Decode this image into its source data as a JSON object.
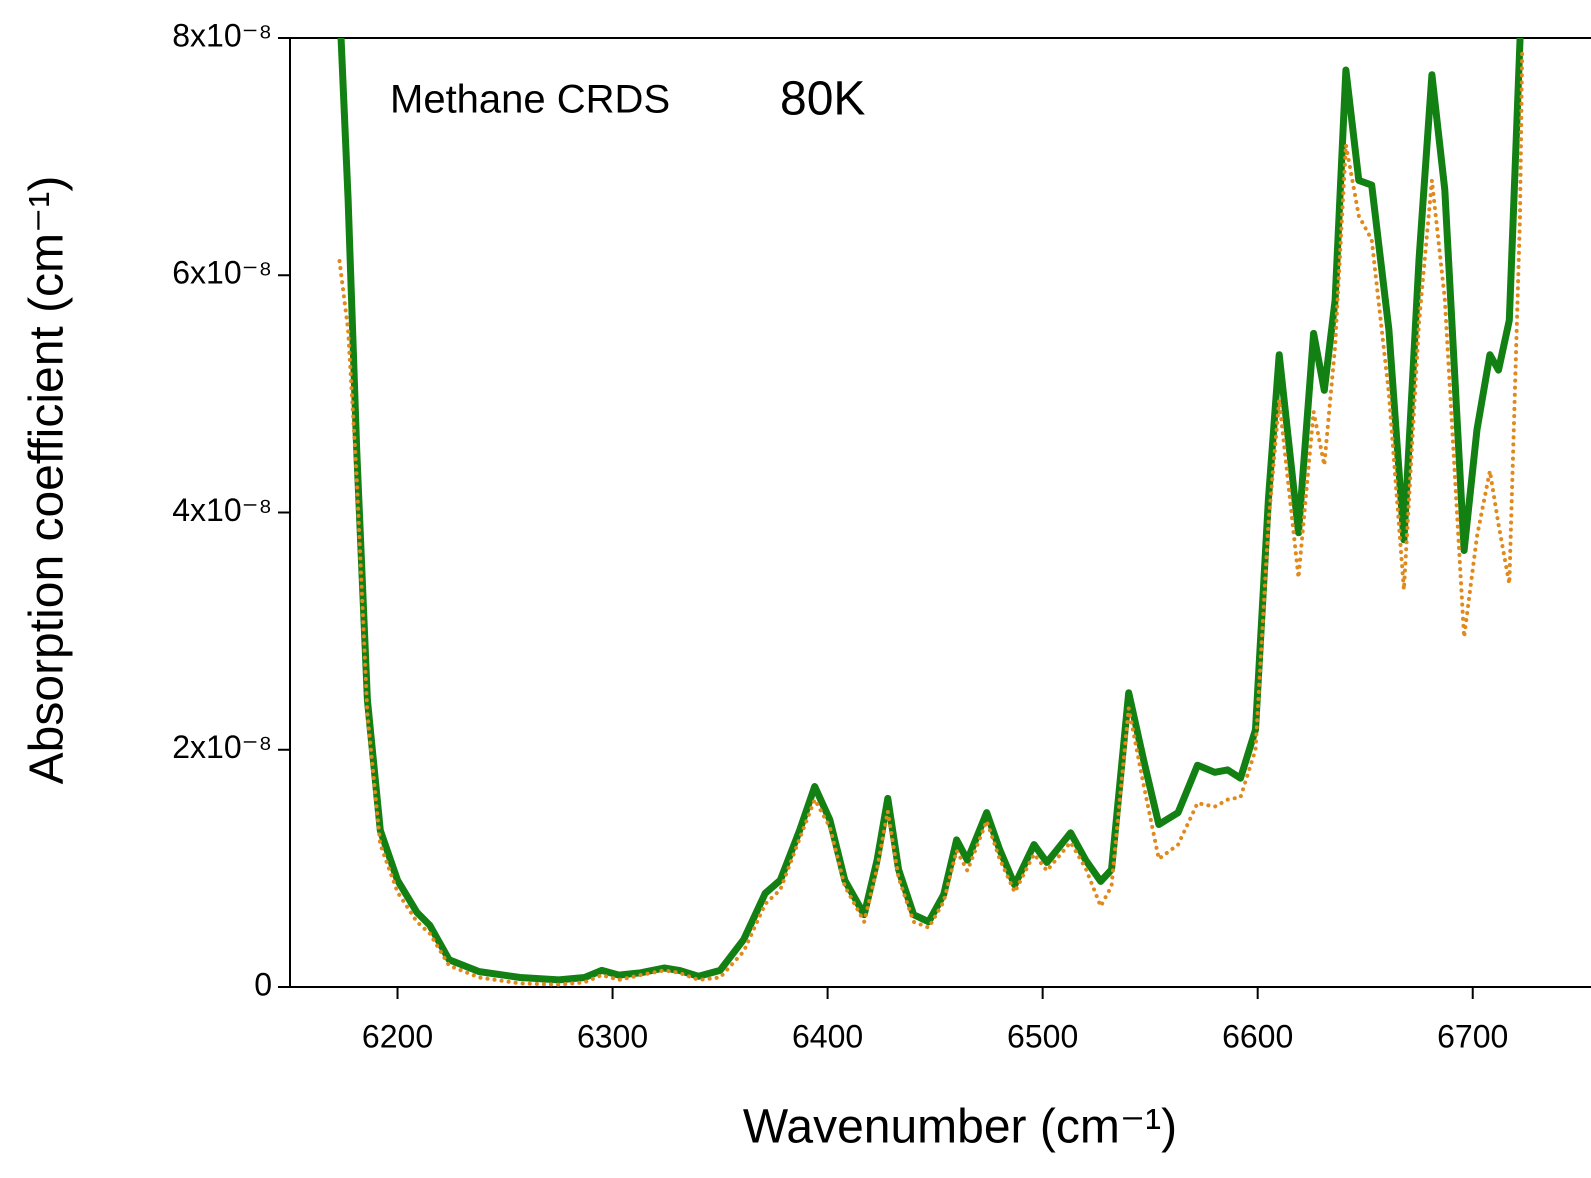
{
  "chart_data": {
    "type": "line",
    "annotations": [
      "Methane CRDS",
      "80K"
    ],
    "x_label": "Wavenumber (cm⁻¹)",
    "y_label": "Absorption coefficient (cm⁻¹)",
    "x": [
      6173,
      6177,
      6181,
      6186,
      6192,
      6200,
      6209,
      6215,
      6224,
      6238,
      6257,
      6275,
      6287,
      6295,
      6303,
      6313,
      6324,
      6331,
      6340,
      6350,
      6361,
      6371,
      6378,
      6387,
      6394,
      6401,
      6408,
      6417,
      6423,
      6428,
      6433,
      6440,
      6447,
      6454,
      6460,
      6465,
      6474,
      6480,
      6487,
      6496,
      6502,
      6513,
      6520,
      6527,
      6532,
      6540,
      6547,
      6554,
      6563,
      6572,
      6580,
      6586,
      6592,
      6599,
      6605,
      6610,
      6619,
      6626,
      6631,
      6636,
      6641,
      6647,
      6653,
      6661,
      6668,
      6675,
      6681,
      6687,
      6696,
      6702,
      6708,
      6712,
      6717,
      6722,
      6723
    ],
    "series": [
      {
        "color": "#138013",
        "style": "solid",
        "values": [
          8.3e-08,
          6.64e-08,
          4.53e-08,
          2.42e-08,
          1.32e-08,
          9e-09,
          6.3e-09,
          5.2e-09,
          2.3e-09,
          1.3e-09,
          8e-10,
          6e-10,
          8e-10,
          1.4e-09,
          1e-09,
          1.2e-09,
          1.6e-09,
          1.4e-09,
          9e-10,
          1.4e-09,
          4e-09,
          7.9e-09,
          9e-09,
          1.32e-08,
          1.69e-08,
          1.41e-08,
          9e-09,
          6.1e-09,
          1.07e-08,
          1.59e-08,
          9.9e-09,
          6.1e-09,
          5.5e-09,
          7.8e-09,
          1.24e-08,
          1.07e-08,
          1.47e-08,
          1.16e-08,
          8.6e-09,
          1.2e-08,
          1.05e-08,
          1.3e-08,
          1.07e-08,
          8.9e-09,
          9.9e-09,
          2.48e-08,
          1.91e-08,
          1.37e-08,
          1.47e-08,
          1.87e-08,
          1.81e-08,
          1.83e-08,
          1.76e-08,
          2.17e-08,
          4.11e-08,
          5.33e-08,
          3.83e-08,
          5.51e-08,
          5.03e-08,
          5.79e-08,
          7.73e-08,
          6.8e-08,
          6.76e-08,
          5.54e-08,
          3.77e-08,
          6.13e-08,
          7.69e-08,
          6.72e-08,
          3.68e-08,
          4.7e-08,
          5.33e-08,
          5.2e-08,
          5.62e-08,
          7.98e-08,
          8.3e-08
        ]
      },
      {
        "color": "#e08a1e",
        "style": "dotted",
        "values": [
          6.12e-08,
          5.54e-08,
          4.3e-08,
          2.3e-08,
          1.2e-08,
          8e-09,
          5.5e-09,
          4.5e-09,
          1.8e-09,
          8e-10,
          3e-10,
          2e-10,
          4e-10,
          1e-09,
          6e-10,
          1e-09,
          1.4e-09,
          1.2e-09,
          6e-10,
          8e-10,
          3e-09,
          7e-09,
          8.2e-09,
          1.25e-08,
          1.58e-08,
          1.35e-08,
          8.5e-09,
          5.5e-09,
          1e-08,
          1.48e-08,
          9.2e-09,
          5.5e-09,
          5e-09,
          7.2e-09,
          1.15e-08,
          9.8e-09,
          1.4e-08,
          1.08e-08,
          8e-09,
          1.12e-08,
          9.8e-09,
          1.22e-08,
          1e-08,
          6.8e-09,
          8.5e-09,
          2.35e-08,
          1.7e-08,
          1.08e-08,
          1.2e-08,
          1.55e-08,
          1.52e-08,
          1.58e-08,
          1.6e-08,
          2e-08,
          3.9e-08,
          4.95e-08,
          3.45e-08,
          4.85e-08,
          4.4e-08,
          5.4e-08,
          7.1e-08,
          6.5e-08,
          6.3e-08,
          5e-08,
          3.35e-08,
          5.6e-08,
          6.8e-08,
          5.8e-08,
          2.95e-08,
          3.8e-08,
          4.35e-08,
          3.9e-08,
          3.4e-08,
          6.5e-08,
          7.9e-08
        ]
      }
    ],
    "xlim": [
      6150,
      6755
    ],
    "xticks": [
      6200,
      6300,
      6400,
      6500,
      6600,
      6700
    ],
    "ylim": [
      0,
      8e-08
    ],
    "yticks": [
      0,
      {
        "value": 2e-08,
        "label": "2x10⁻⁸"
      },
      {
        "value": 4e-08,
        "label": "4x10⁻⁸"
      },
      {
        "value": 6e-08,
        "label": "6x10⁻⁸"
      },
      {
        "value": 8e-08,
        "label": "8x10⁻⁸"
      }
    ],
    "grid": false
  }
}
